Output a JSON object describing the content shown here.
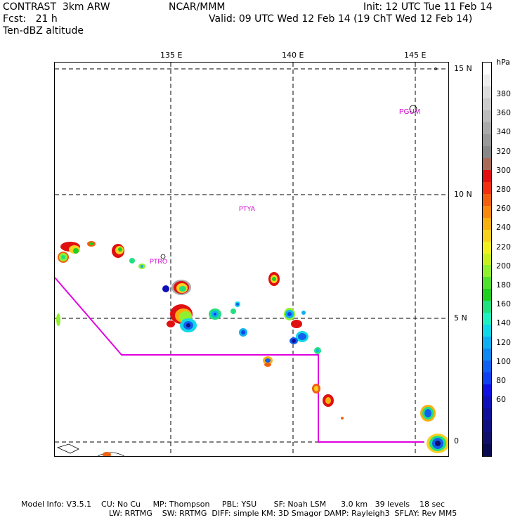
{
  "header": {
    "model_line": "CONTRAST  3km ARW",
    "org": "NCAR/MMM",
    "init": "Init: 12 UTC Tue 11 Feb 14",
    "fcst": "Fcst:   21 h",
    "valid": "Valid: 09 UTC Wed 12 Feb 14 (19 ChT Wed 12 Feb 14)",
    "field": "Ten-dBZ altitude"
  },
  "axes": {
    "lon_labels": [
      "135 E",
      "140 E",
      "145 E"
    ],
    "lat_labels": [
      "15 N",
      "10 N",
      "5 N",
      "0"
    ]
  },
  "stations": [
    "PGUM",
    "PTYA",
    "PTRO"
  ],
  "colorbar": {
    "unit": "hPa",
    "ticks": [
      "380",
      "360",
      "340",
      "320",
      "300",
      "280",
      "260",
      "240",
      "220",
      "200",
      "180",
      "160",
      "140",
      "120",
      "100",
      "80",
      "60"
    ],
    "colors": [
      "#ffffff",
      "#eeeeee",
      "#dddddd",
      "#cccccc",
      "#bbbbbb",
      "#aaaaaa",
      "#999999",
      "#888888",
      "#aa6a5a",
      "#e01010",
      "#f03010",
      "#f06010",
      "#f88810",
      "#f8b010",
      "#f8d020",
      "#f0f020",
      "#c8f020",
      "#90f030",
      "#50e030",
      "#20d020",
      "#20e080",
      "#20f0c0",
      "#10d8e8",
      "#10b0f0",
      "#1088f0",
      "#1060f0",
      "#1040f0",
      "#1010e0",
      "#1010b8",
      "#101098",
      "#101080",
      "#101068",
      "#0a0a50"
    ]
  },
  "footer": {
    "line1": "Model Info: V3.5.1    CU: No Cu     MP: Thompson     PBL: YSU       SF: Noah LSM      3.0 km   39 levels    18 sec",
    "line2": "LW: RRTMG    SW: RRTMG  DIFF: simple KM: 3D Smagor DAMP: Rayleigh3  SFLAY: Rev MM5"
  }
}
